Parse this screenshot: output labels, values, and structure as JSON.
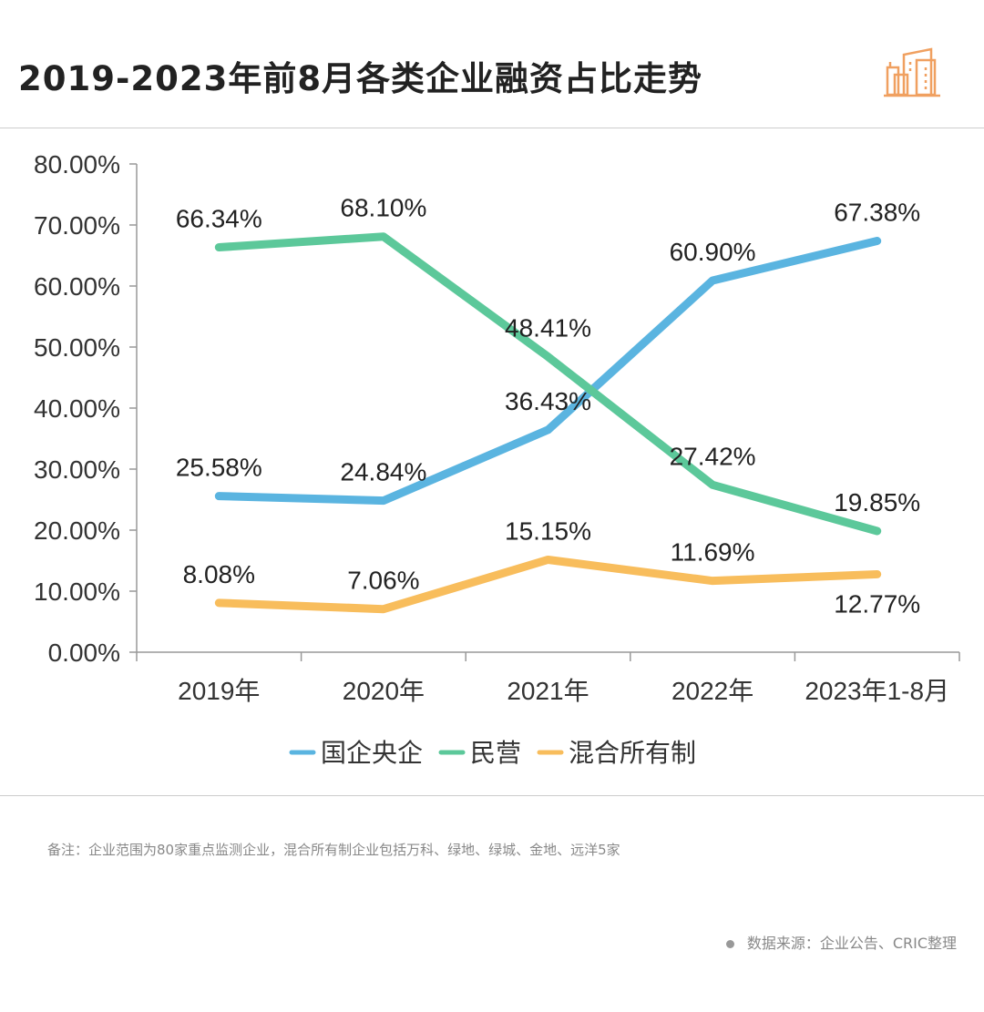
{
  "header": {
    "title": "2019-2023年前8月各类企业融资占比走势",
    "icon": "city-buildings-icon",
    "icon_color": "#f0a060"
  },
  "chart_data": {
    "type": "line",
    "categories": [
      "2019年",
      "2020年",
      "2021年",
      "2022年",
      "2023年1-8月"
    ],
    "ylim": [
      0,
      80
    ],
    "yticks": [
      "0.00%",
      "10.00%",
      "20.00%",
      "30.00%",
      "40.00%",
      "50.00%",
      "60.00%",
      "70.00%",
      "80.00%"
    ],
    "grid": false,
    "legend": "bottom",
    "series": [
      {
        "name": "国企央企",
        "color": "#5ab4e0",
        "values": [
          25.58,
          24.84,
          36.43,
          60.9,
          67.38
        ],
        "labels": [
          "25.58%",
          "24.84%",
          "36.43%",
          "60.90%",
          "67.38%"
        ]
      },
      {
        "name": "民营",
        "color": "#5cc89a",
        "values": [
          66.34,
          68.1,
          48.41,
          27.42,
          19.85
        ],
        "labels": [
          "66.34%",
          "68.10%",
          "48.41%",
          "27.42%",
          "19.85%"
        ]
      },
      {
        "name": "混合所有制",
        "color": "#f8bd5c",
        "values": [
          8.08,
          7.06,
          15.15,
          11.69,
          12.77
        ],
        "labels": [
          "8.08%",
          "7.06%",
          "15.15%",
          "11.69%",
          "12.77%"
        ]
      }
    ]
  },
  "footer": {
    "note": "备注：企业范围为80家重点监测企业，混合所有制企业包括万科、绿地、绿城、金地、远洋5家",
    "source": "数据来源：企业公告、CRIC整理"
  }
}
